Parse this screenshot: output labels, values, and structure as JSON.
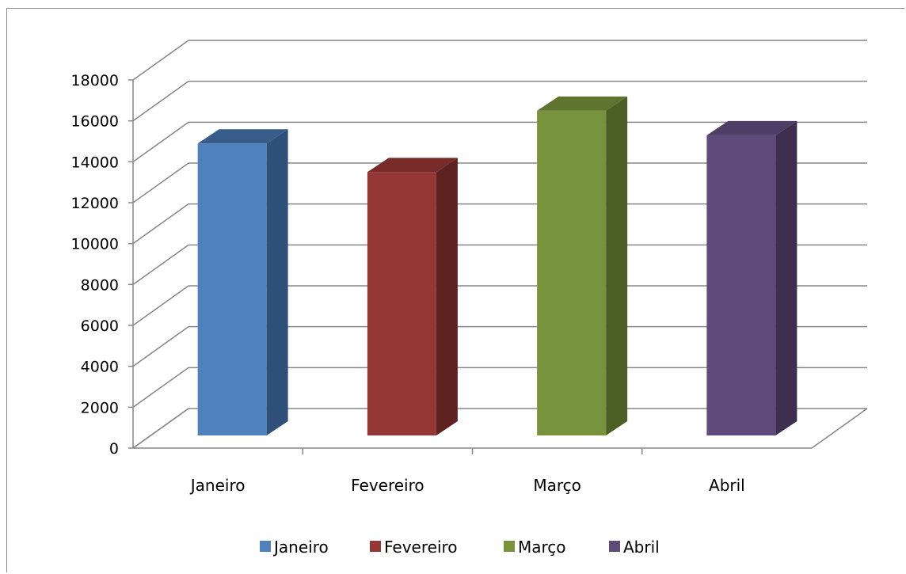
{
  "chart_data": {
    "type": "bar",
    "style": "3d-column",
    "categories": [
      "Janeiro",
      "Fevereiro",
      "Março",
      "Abril"
    ],
    "values": [
      15900,
      14500,
      17500,
      16300
    ],
    "ylim": [
      0,
      18000
    ],
    "ytick_step": 2000,
    "yticks": [
      "0",
      "2000",
      "4000",
      "6000",
      "8000",
      "10000",
      "12000",
      "14000",
      "16000",
      "18000"
    ],
    "grid": true,
    "legend": "bottom",
    "legend_entries": [
      "Janeiro",
      "Fevereiro",
      "Março",
      "Abril"
    ],
    "colors": {
      "Janeiro": {
        "front": "#4f81bd",
        "side": "#2f5079",
        "top": "#385d8a"
      },
      "Fevereiro": {
        "front": "#953735",
        "side": "#5d2220",
        "top": "#772c2a"
      },
      "Março": {
        "front": "#77933c",
        "side": "#4b5e24",
        "top": "#5f752f"
      },
      "Abril": {
        "front": "#604a7b",
        "side": "#3e2f51",
        "top": "#4f3d66"
      }
    }
  }
}
